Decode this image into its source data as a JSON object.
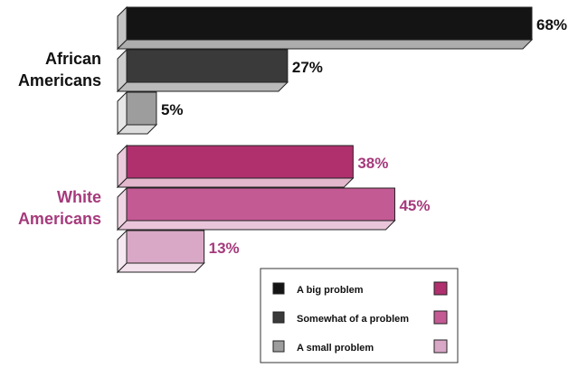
{
  "chart_data": {
    "type": "bar",
    "orientation": "horizontal",
    "style": "3d",
    "unit": "%",
    "xlim": [
      0,
      68
    ],
    "grid": false,
    "legend_position": "bottom-right",
    "legend": [
      {
        "label": "A big problem",
        "color_black": "#141414",
        "color_white": "#b0306e"
      },
      {
        "label": "Somewhat of a problem",
        "color_black": "#3a3a3a",
        "color_white": "#c45a94"
      },
      {
        "label": "A small problem",
        "color_black": "#9d9d9d",
        "color_white": "#d9a8c6"
      }
    ],
    "groups": [
      {
        "label_lines": [
          "African",
          "Americans"
        ],
        "label_color": "#111111",
        "value_color": "#111111",
        "bars": [
          {
            "series": "A big problem",
            "value": 68,
            "label": "68%",
            "color": "#141414"
          },
          {
            "series": "Somewhat of a problem",
            "value": 27,
            "label": "27%",
            "color": "#3a3a3a"
          },
          {
            "series": "A small problem",
            "value": 5,
            "label": "5%",
            "color": "#9d9d9d"
          }
        ]
      },
      {
        "label_lines": [
          "White",
          "Americans"
        ],
        "label_color": "#a53a7c",
        "value_color": "#a53a7c",
        "bars": [
          {
            "series": "A big problem",
            "value": 38,
            "label": "38%",
            "color": "#b0306e"
          },
          {
            "series": "Somewhat of a problem",
            "value": 45,
            "label": "45%",
            "color": "#c45a94"
          },
          {
            "series": "A small problem",
            "value": 13,
            "label": "13%",
            "color": "#d9a8c6"
          }
        ]
      }
    ]
  }
}
